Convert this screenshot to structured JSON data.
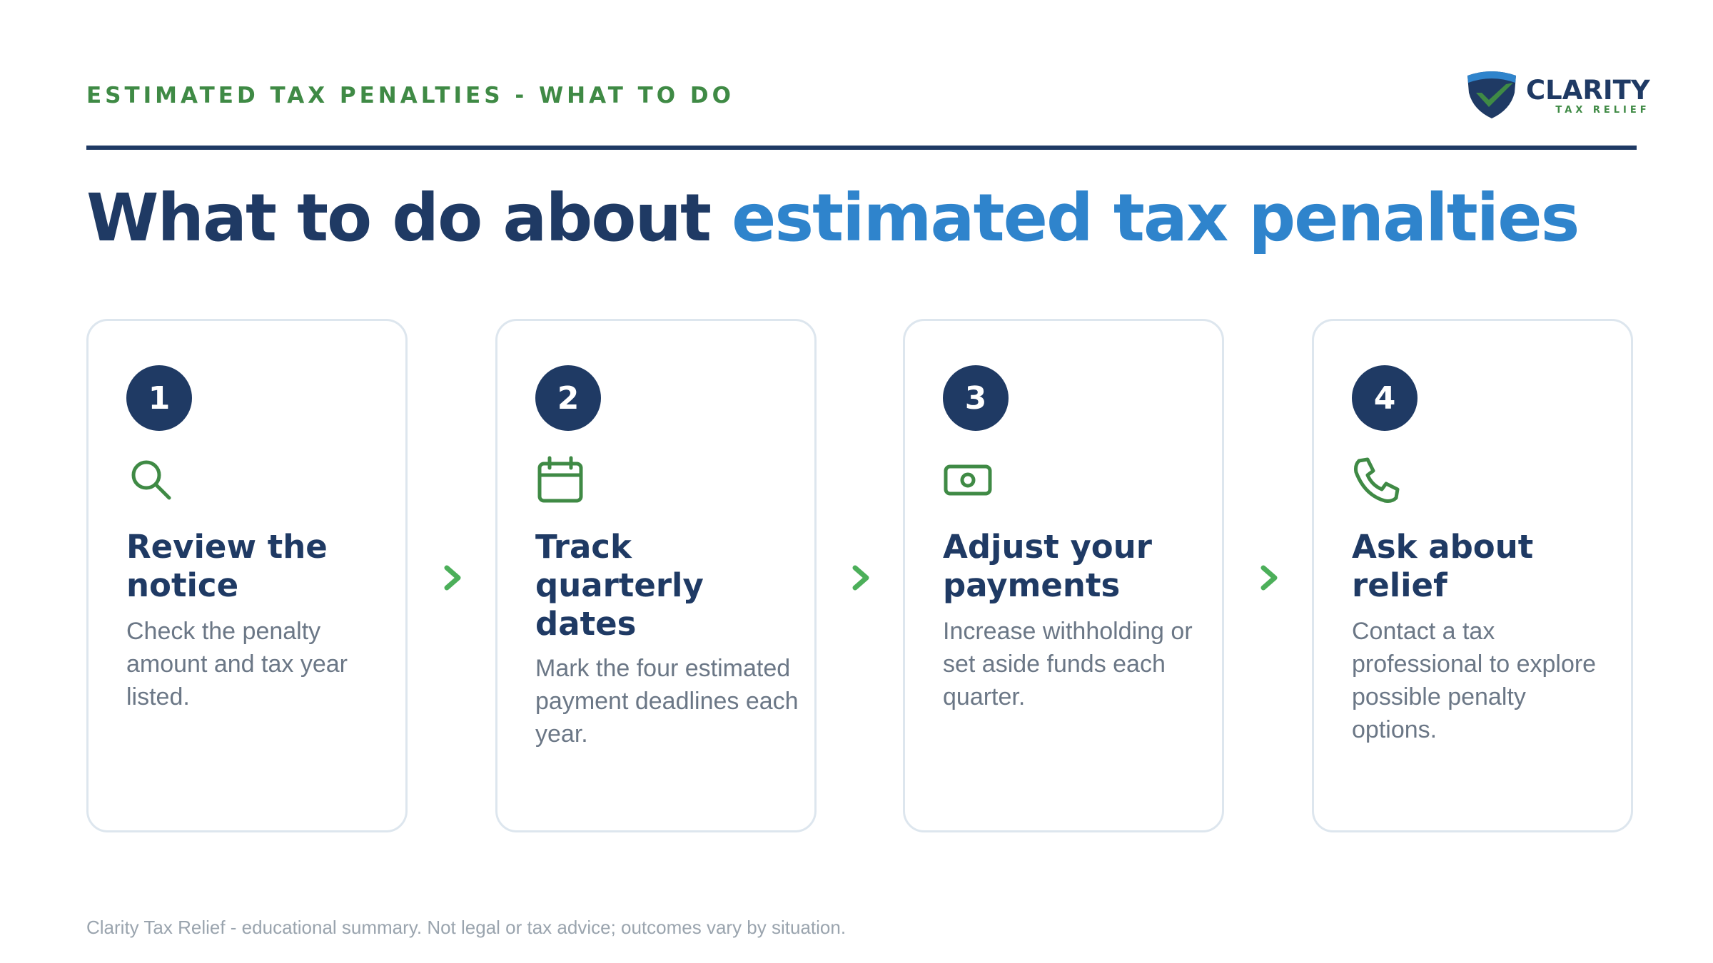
{
  "header": {
    "eyebrow": "ESTIMATED TAX PENALTIES - WHAT TO DO",
    "logo": {
      "name": "CLARITY",
      "tagline": "TAX RELIEF",
      "icon": "shield-check-icon"
    }
  },
  "headline": {
    "lead": "What to do about ",
    "accent": "estimated tax penalties"
  },
  "steps": [
    {
      "number": "1",
      "icon": "search-icon",
      "title": "Review the notice",
      "body": "Check the penalty amount and tax year listed."
    },
    {
      "number": "2",
      "icon": "calendar-icon",
      "title": "Track quarterly dates",
      "body": "Mark the four estimated payment deadlines each year."
    },
    {
      "number": "3",
      "icon": "money-icon",
      "title": "Adjust your payments",
      "body": "Increase withholding or set aside funds each quarter."
    },
    {
      "number": "4",
      "icon": "phone-icon",
      "title": "Ask about relief",
      "body": "Contact a tax professional to explore possible penalty options."
    }
  ],
  "connector_icon": "chevron-right-icon",
  "footer": {
    "disclaimer": "Clarity Tax Relief - educational summary. Not legal or tax advice; outcomes vary by situation."
  },
  "colors": {
    "navy": "#1f3a64",
    "accent_blue": "#2f84cc",
    "green": "#3f8a45",
    "arrow_green": "#4caf5a",
    "muted_text": "#6b7786",
    "card_border": "#dde6ee"
  }
}
